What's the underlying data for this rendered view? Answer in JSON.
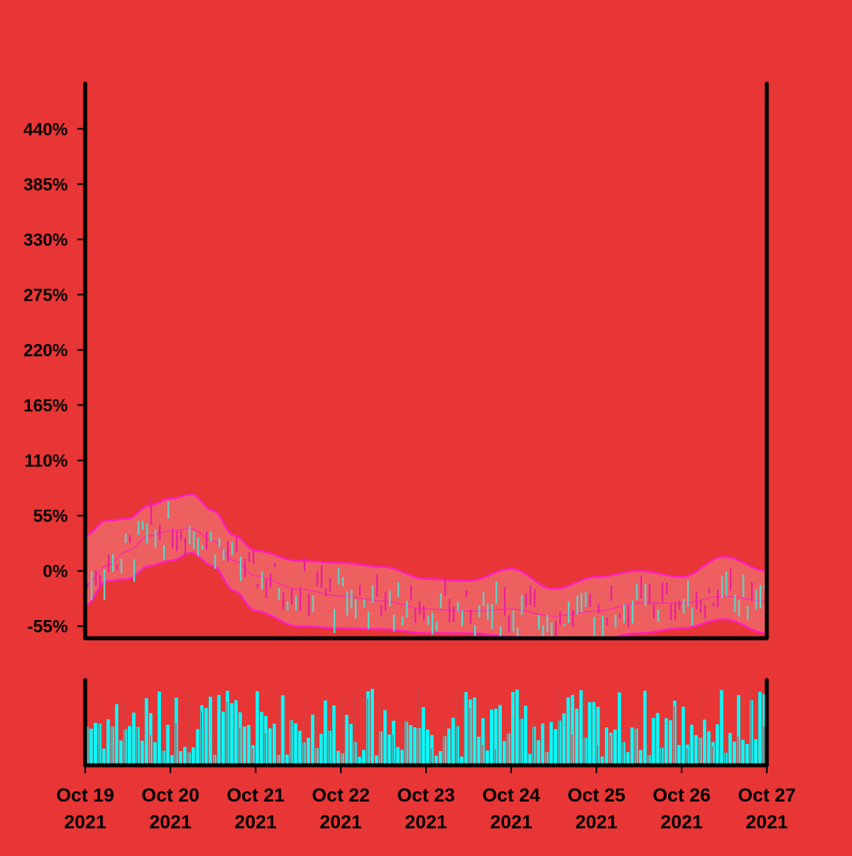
{
  "chart_data": {
    "type": "ohlc",
    "title": "",
    "xlabel": "",
    "ylabel": "",
    "colors": {
      "background": "#e83535",
      "up": "#5fd1c3",
      "down": "#e8219c",
      "band_line": "#ff1fc0",
      "band_fill": "#ee6565",
      "volume": "#00ffff",
      "axis": "#000000"
    },
    "y_axis": {
      "unit": "percent",
      "ylim": [
        -67,
        485
      ],
      "ticks": [
        -55,
        0,
        55,
        110,
        165,
        220,
        275,
        330,
        385,
        440
      ],
      "tick_labels": [
        "-55%",
        "0%",
        "55%",
        "110%",
        "165%",
        "220%",
        "275%",
        "330%",
        "385%",
        "440%"
      ]
    },
    "x_axis": {
      "range": [
        "2021-10-19",
        "2021-10-27"
      ],
      "ticks": [
        "2021-10-19",
        "2021-10-20",
        "2021-10-21",
        "2021-10-22",
        "2021-10-23",
        "2021-10-24",
        "2021-10-25",
        "2021-10-26",
        "2021-10-27"
      ],
      "tick_labels": [
        [
          "Oct 19",
          "2021"
        ],
        [
          "Oct 20",
          "2021"
        ],
        [
          "Oct 21",
          "2021"
        ],
        [
          "Oct 22",
          "2021"
        ],
        [
          "Oct 23",
          "2021"
        ],
        [
          "Oct 24",
          "2021"
        ],
        [
          "Oct 25",
          "2021"
        ],
        [
          "Oct 26",
          "2021"
        ],
        [
          "Oct 27",
          "2021"
        ]
      ]
    },
    "bands_percent": {
      "x_days": [
        0,
        0.25,
        0.5,
        0.75,
        1,
        1.25,
        1.5,
        1.75,
        2,
        2.5,
        3,
        3.5,
        4,
        4.5,
        5,
        5.5,
        6,
        6.5,
        7,
        7.5,
        8
      ],
      "upper": [
        35,
        50,
        52,
        65,
        72,
        76,
        60,
        35,
        20,
        10,
        8,
        4,
        -8,
        -10,
        2,
        -18,
        -6,
        0,
        -6,
        14,
        0
      ],
      "middle": [
        -15,
        5,
        20,
        35,
        40,
        42,
        30,
        10,
        -5,
        -18,
        -25,
        -30,
        -38,
        -40,
        -38,
        -45,
        -40,
        -32,
        -32,
        -25,
        -30
      ],
      "lower": [
        -35,
        -10,
        -8,
        5,
        10,
        18,
        5,
        -20,
        -40,
        -55,
        -57,
        -58,
        -62,
        -62,
        -65,
        -72,
        -68,
        -62,
        -57,
        -48,
        -62
      ]
    },
    "candles_count": 160,
    "volume_axis": {
      "ylim": [
        0,
        100
      ]
    }
  }
}
